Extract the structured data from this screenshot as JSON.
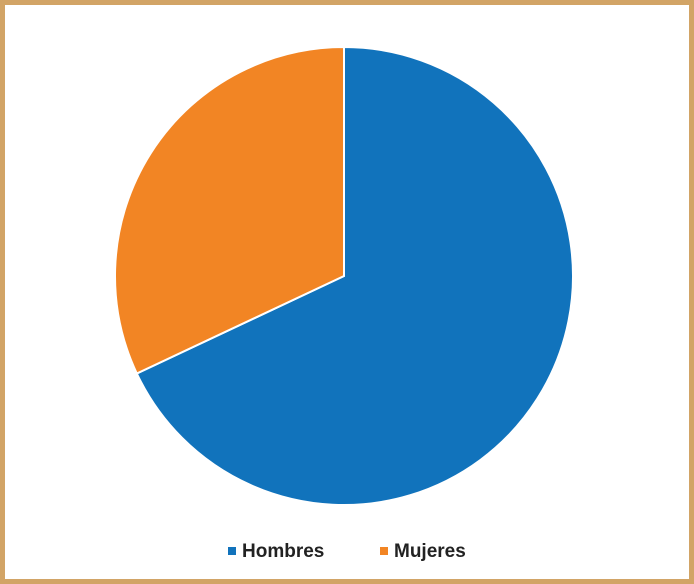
{
  "chart_data": {
    "type": "pie",
    "categories": [
      "Hombres",
      "Mujeres"
    ],
    "values": [
      68,
      32
    ],
    "colors": [
      "#1173bc",
      "#f28524"
    ],
    "legend": "bottom"
  }
}
